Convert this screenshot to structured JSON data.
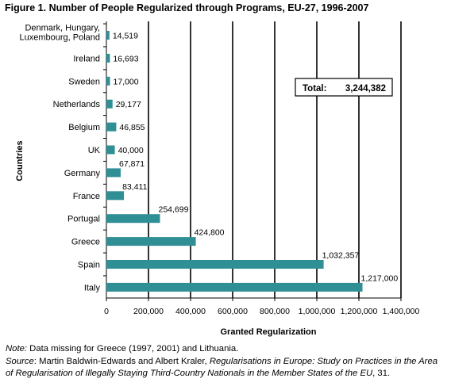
{
  "title": "Figure 1. Number of People Regularized through Programs, EU-27, 1996-2007",
  "chart_data": {
    "type": "bar",
    "orientation": "horizontal",
    "categories": [
      [
        "Denmark, Hungary,",
        "Luxembourg, Poland"
      ],
      [
        "Ireland"
      ],
      [
        "Sweden"
      ],
      [
        "Netherlands"
      ],
      [
        "Belgium"
      ],
      [
        "UK"
      ],
      [
        "Germany"
      ],
      [
        "France"
      ],
      [
        "Portugal"
      ],
      [
        "Greece"
      ],
      [
        "Spain"
      ],
      [
        "Italy"
      ]
    ],
    "values": [
      14519,
      16693,
      17000,
      29177,
      46855,
      40000,
      67871,
      83411,
      254699,
      424800,
      1032357,
      1217000
    ],
    "value_labels": [
      "14,519",
      "16,693",
      "17,000",
      "29,177",
      "46,855",
      "40,000",
      "67,871",
      "83,411",
      "254,699",
      "424,800",
      "1,032,357",
      "1,217,000"
    ],
    "xlabel": "Granted Regularization",
    "ylabel": "Countries",
    "xlim": [
      0,
      1400000
    ],
    "xticks": [
      "0",
      "200,000",
      "400,000",
      "600,000",
      "800,000",
      "1,000,000",
      "1,200,000",
      "1,400,000"
    ],
    "grid": "vertical",
    "bar_color": "#2f8f95",
    "annotation": {
      "label": "Total:",
      "value": "3,244,382"
    }
  },
  "footer": {
    "note_label": "Note:",
    "note_text": "Data missing for Greece (1997, 2001) and Lithuania.",
    "source_label": "Source",
    "source_plain": ": Martin Baldwin-Edwards and Albert Kraler, ",
    "source_title": "Regularisations in Europe: Study on Practices in the Area of Regularisation of Illegally Staying Third-Country Nationals in the Member States of the EU",
    "source_end": ", 31."
  }
}
